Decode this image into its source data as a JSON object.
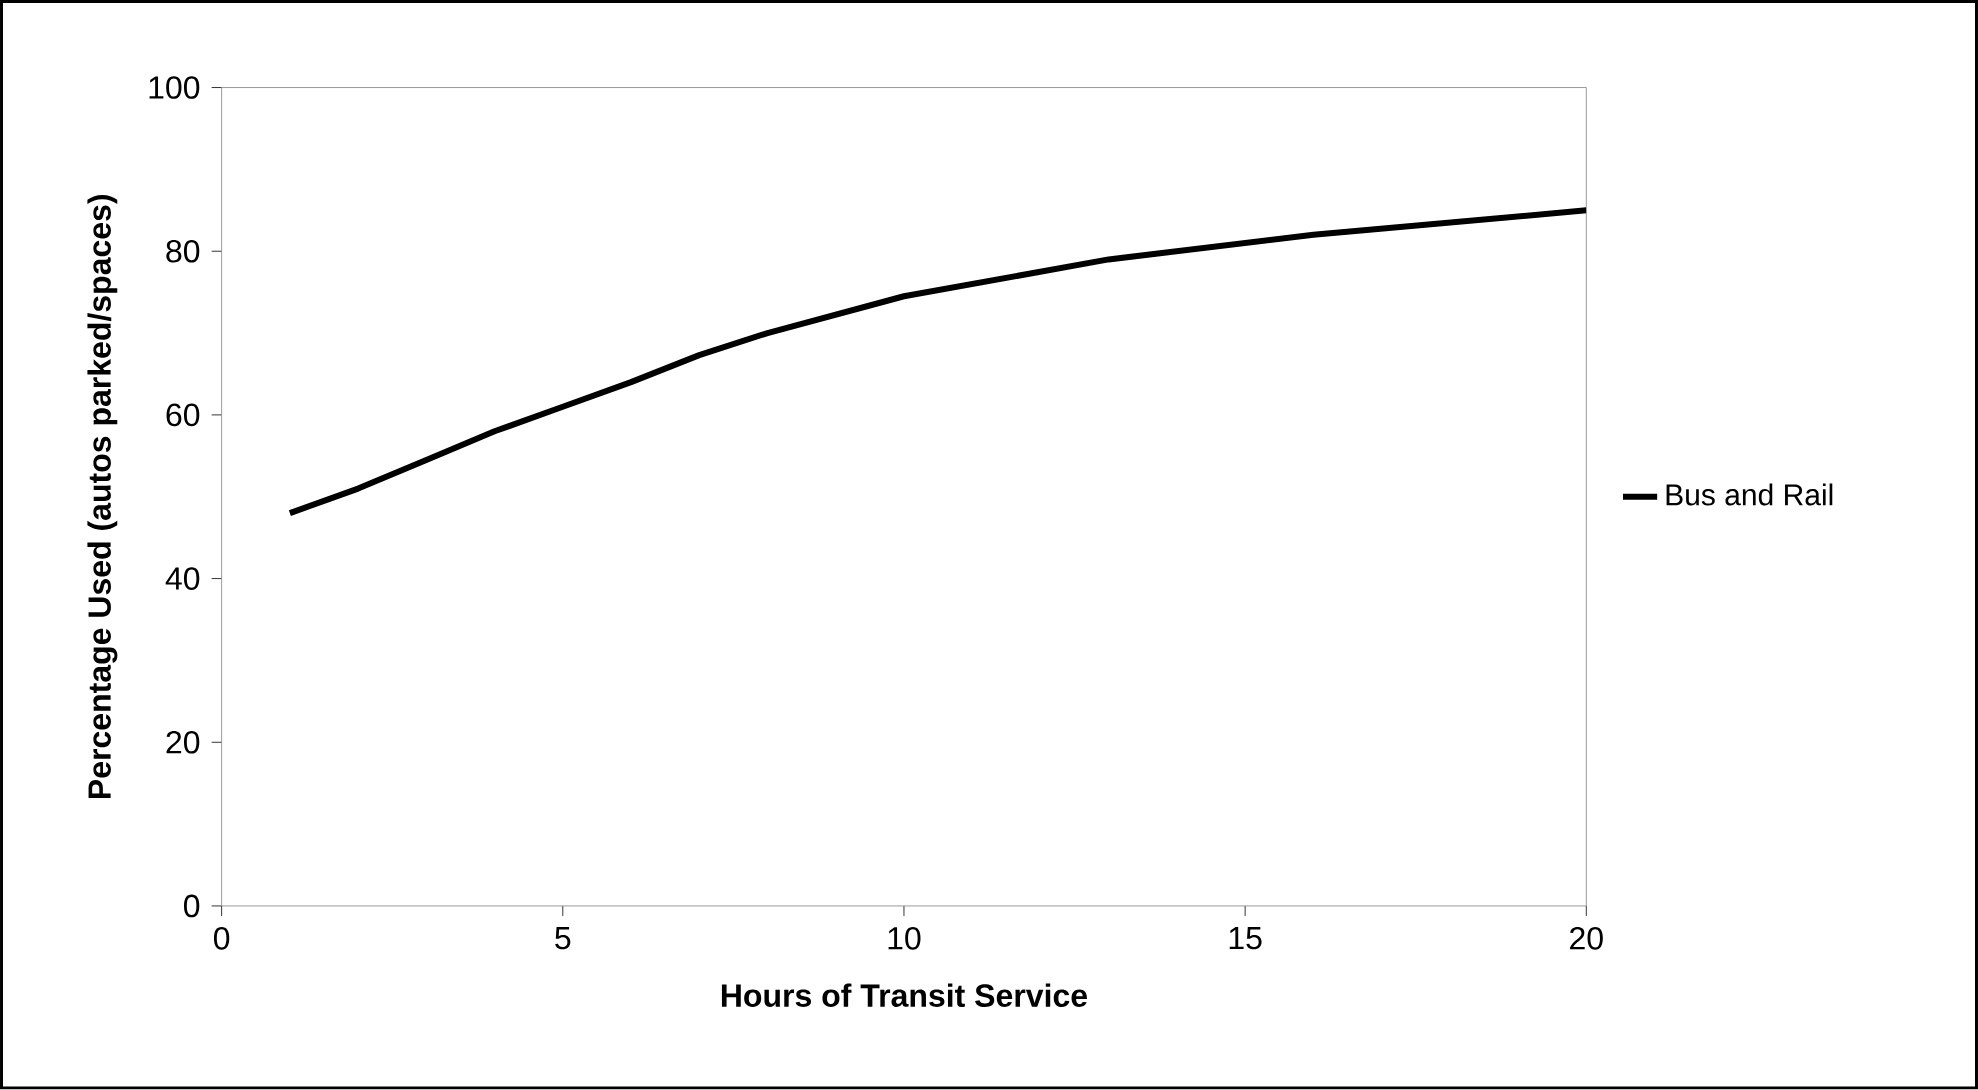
{
  "chart_data": {
    "type": "line",
    "xlabel": "Hours of Transit Service",
    "ylabel": "Percentage Used (autos parked/spaces)",
    "x": [
      1,
      2,
      3,
      4,
      5,
      6,
      7,
      8,
      10,
      13,
      16,
      20
    ],
    "series": [
      {
        "name": "Bus and Rail",
        "color": "#000000",
        "values": [
          48,
          51,
          54.5,
          58,
          61,
          64,
          67.3,
          70,
          74.5,
          79,
          82,
          85
        ]
      }
    ],
    "xlim": [
      0,
      20
    ],
    "ylim": [
      0,
      100
    ],
    "xticks": [
      0,
      5,
      10,
      15,
      20
    ],
    "yticks": [
      0,
      20,
      40,
      60,
      80,
      100
    ],
    "grid": false,
    "legend": "right",
    "marker": "none",
    "line_style": "solid"
  }
}
